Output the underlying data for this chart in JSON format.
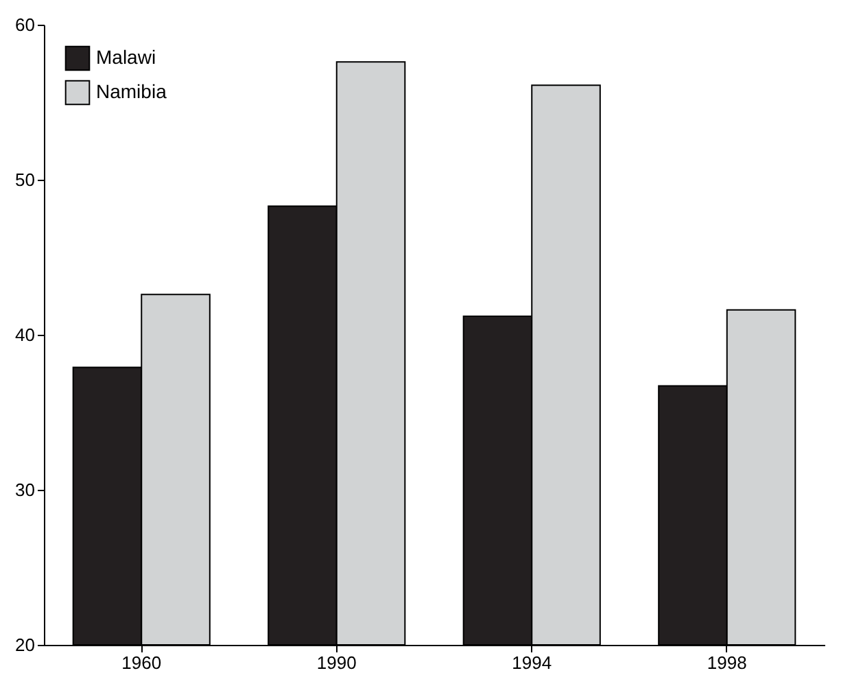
{
  "chart_data": {
    "type": "bar",
    "categories": [
      "1960",
      "1990",
      "1994",
      "1998"
    ],
    "series": [
      {
        "name": "Malawi",
        "color": "#231f20",
        "values": [
          37.9,
          48.3,
          41.2,
          36.7
        ]
      },
      {
        "name": "Namibia",
        "color": "#d1d3d4",
        "values": [
          42.6,
          57.6,
          56.1,
          41.6
        ]
      }
    ],
    "ylim": [
      20,
      60
    ],
    "yticks": [
      20,
      30,
      40,
      50,
      60
    ],
    "grid": false,
    "legend": "top left"
  }
}
